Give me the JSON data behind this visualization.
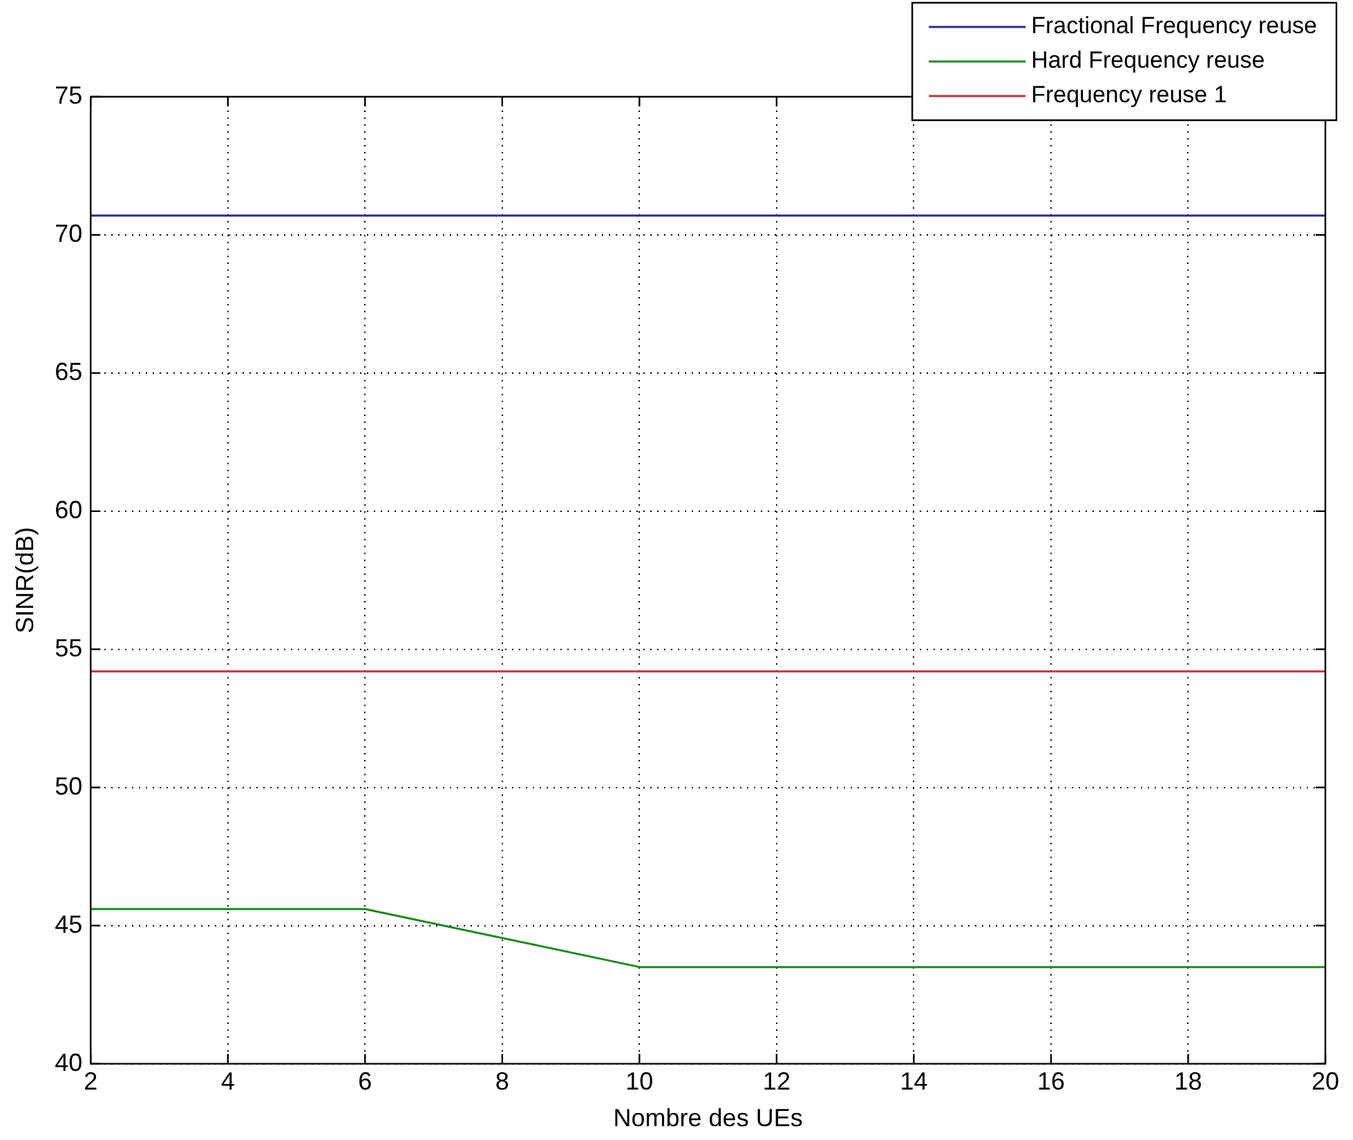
{
  "chart_data": {
    "type": "line",
    "xlabel": "Nombre des UEs",
    "ylabel": "SINR(dB)",
    "xlim": [
      2,
      20
    ],
    "xticks": [
      2,
      4,
      6,
      8,
      10,
      12,
      14,
      16,
      18,
      20
    ],
    "ylim": [
      40,
      75
    ],
    "yticks": [
      40,
      45,
      50,
      55,
      60,
      65,
      70,
      75
    ],
    "grid": true,
    "legend": "top right",
    "line_style": "solid",
    "marker": "none",
    "series": [
      {
        "name": "Fractional Frequency reuse",
        "color": "#2b2b8f",
        "x": [
          2,
          20
        ],
        "values": [
          70.7,
          70.7
        ]
      },
      {
        "name": "Hard Frequency reuse",
        "color": "#1e8a1e",
        "x": [
          2,
          6,
          10,
          20
        ],
        "values": [
          45.6,
          45.6,
          43.5,
          43.5
        ]
      },
      {
        "name": "Frequency reuse 1",
        "color": "#c8323c",
        "x": [
          2,
          20
        ],
        "values": [
          54.2,
          54.2
        ]
      }
    ]
  }
}
